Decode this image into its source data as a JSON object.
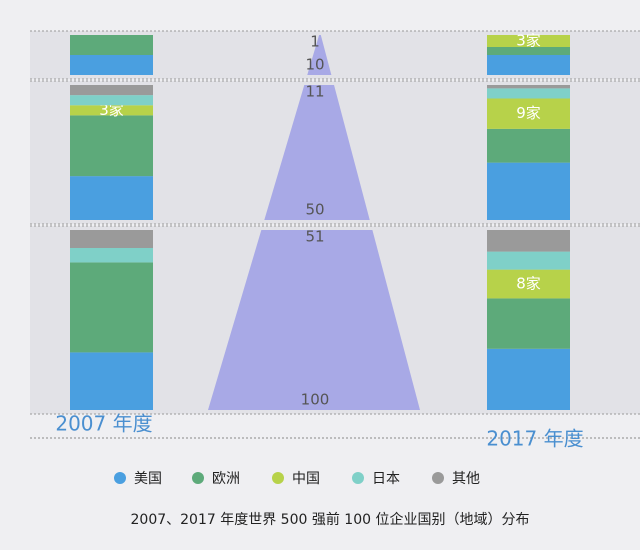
{
  "chart_data": {
    "type": "bar",
    "stacked": true,
    "title": "2007、2017 年度世界 500 强前 100 位企业国别（地域）分布",
    "categories": [
      "2007 年度",
      "2017 年度"
    ],
    "panels": [
      {
        "ranks": [
          1,
          10
        ]
      },
      {
        "ranks": [
          11,
          50
        ]
      },
      {
        "ranks": [
          51,
          100
        ]
      }
    ],
    "series": [
      {
        "name": "美国",
        "color": "#4a9fe0",
        "values": [
          [
            5,
            5
          ],
          [
            13,
            17
          ],
          [
            16,
            17
          ]
        ]
      },
      {
        "name": "欧洲",
        "color": "#5daa7a",
        "values": [
          [
            5,
            2
          ],
          [
            18,
            10
          ],
          [
            25,
            14
          ]
        ]
      },
      {
        "name": "中国",
        "color": "#b7d24a",
        "values": [
          [
            0,
            3
          ],
          [
            3,
            9
          ],
          [
            0,
            8
          ]
        ],
        "value_labels": [
          [
            null,
            "3家"
          ],
          [
            "3家",
            "9家"
          ],
          [
            null,
            "8家"
          ]
        ]
      },
      {
        "name": "日本",
        "color": "#7fd0c8",
        "values": [
          [
            0,
            0
          ],
          [
            3,
            3
          ],
          [
            4,
            5
          ]
        ]
      },
      {
        "name": "其他",
        "color": "#9a9a9a",
        "values": [
          [
            0,
            0
          ],
          [
            3,
            1
          ],
          [
            5,
            6
          ]
        ]
      }
    ]
  }
}
